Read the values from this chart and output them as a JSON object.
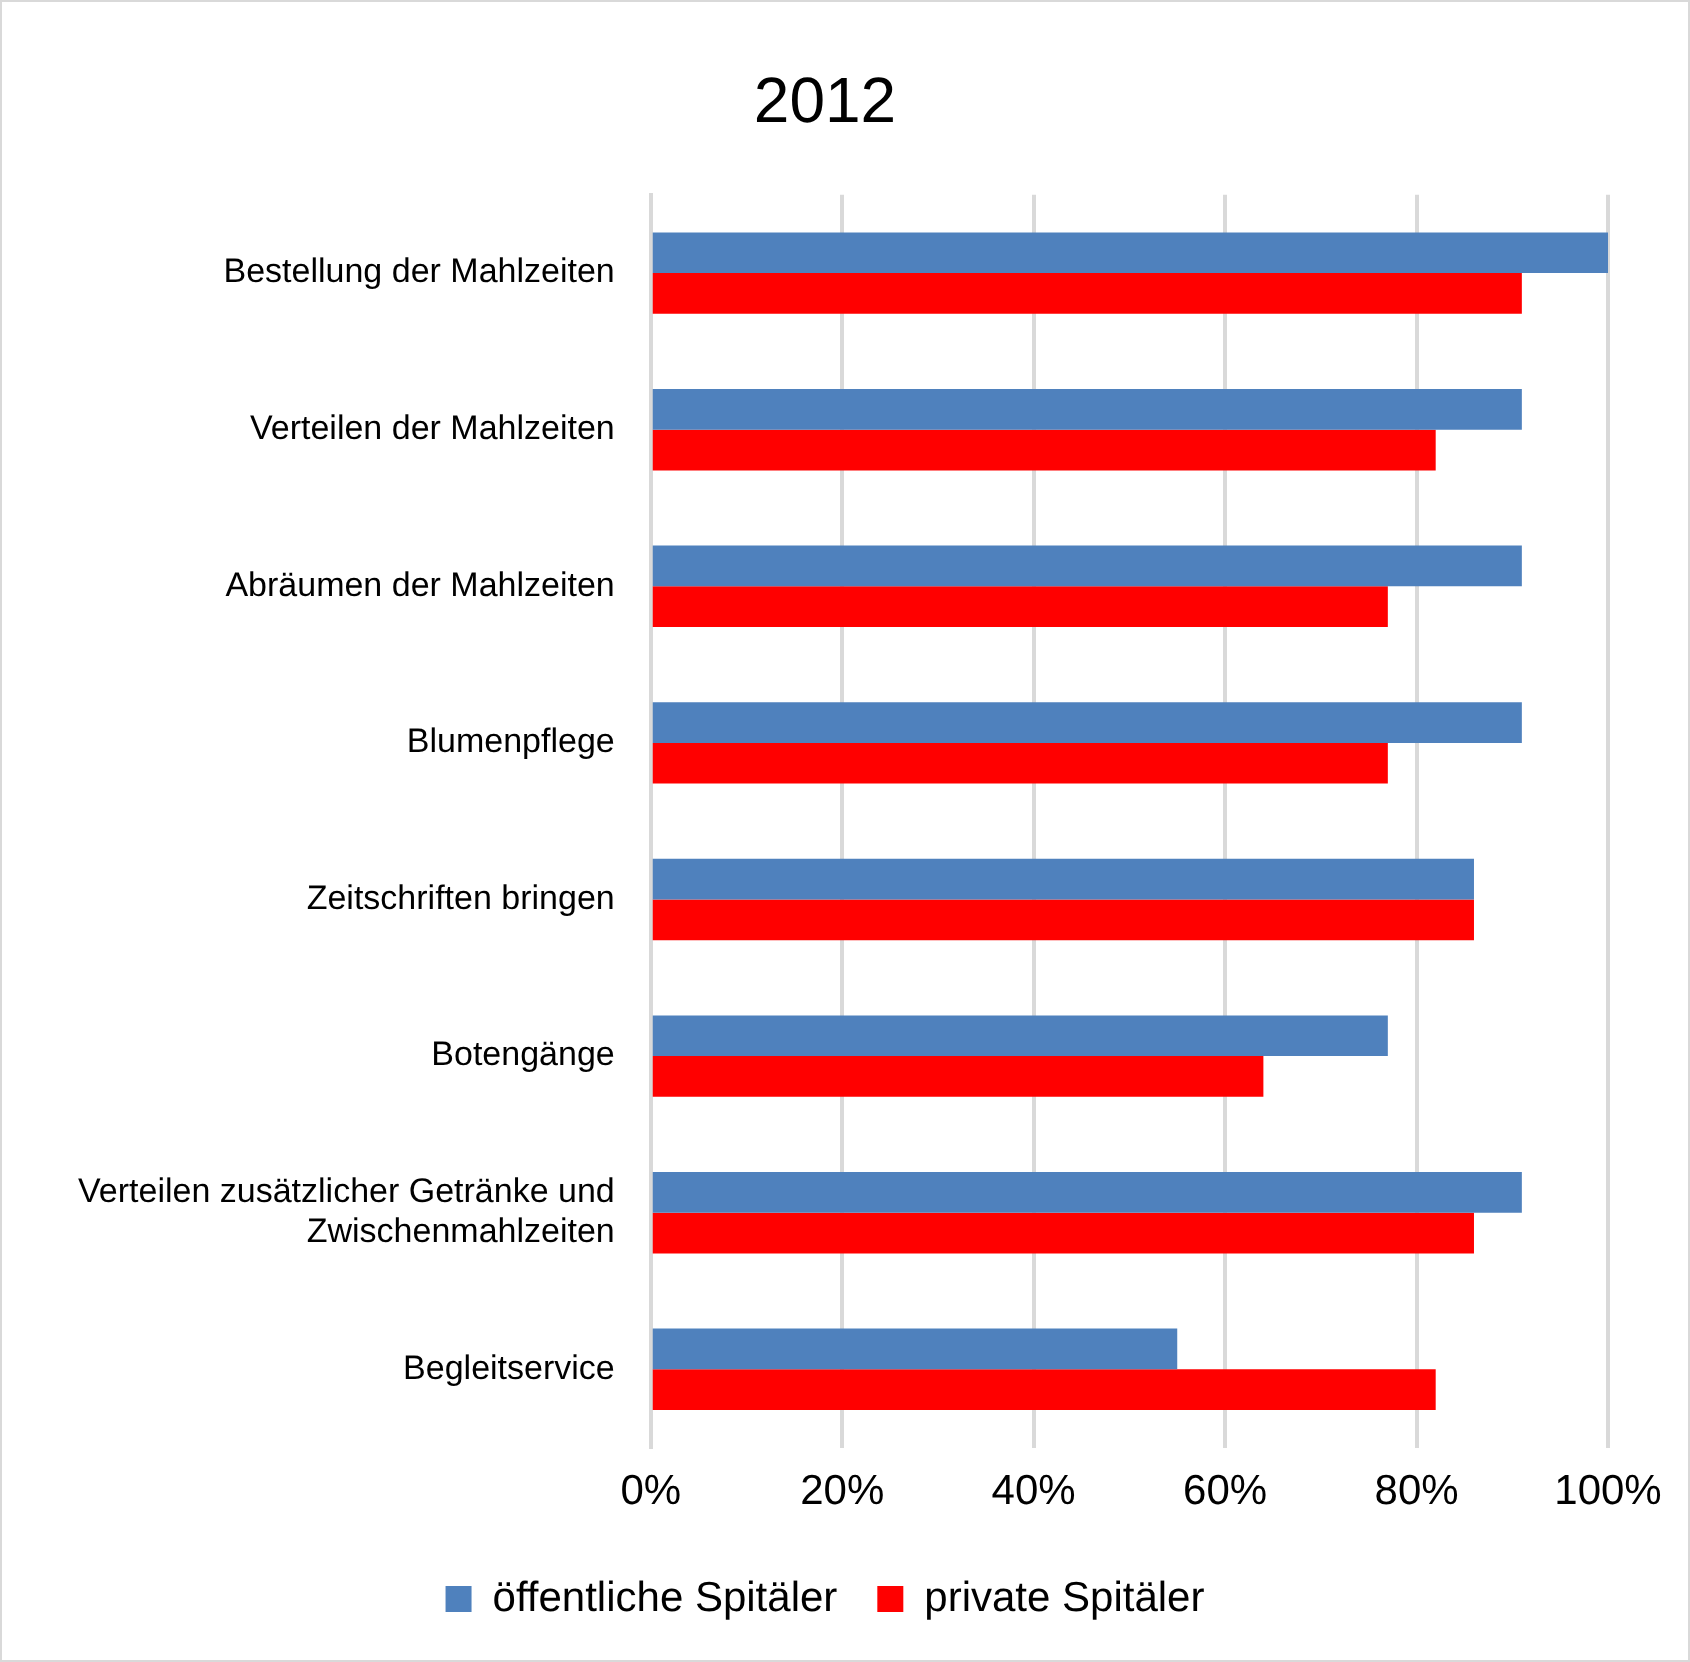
{
  "chart_data": {
    "type": "bar",
    "orientation": "horizontal",
    "title": "2012",
    "categories": [
      "Bestellung der Mahlzeiten",
      "Verteilen der Mahlzeiten",
      "Abräumen der Mahlzeiten",
      "Blumenpflege",
      "Zeitschriften bringen",
      "Botengänge",
      "Verteilen zusätzlicher Getränke und Zwischenmahlzeiten",
      "Begleitservice"
    ],
    "series": [
      {
        "name": "öffentliche Spitäler",
        "color": "#4f81bd",
        "values": [
          100,
          91,
          91,
          91,
          86,
          77,
          91,
          55
        ]
      },
      {
        "name": "private Spitäler",
        "color": "#ff0000",
        "values": [
          91,
          82,
          77,
          77,
          86,
          64,
          86,
          82
        ]
      }
    ],
    "xlim": [
      0,
      100
    ],
    "xticks": [
      {
        "value": 0,
        "label": "0%"
      },
      {
        "value": 20,
        "label": "20%"
      },
      {
        "value": 40,
        "label": "40%"
      },
      {
        "value": 60,
        "label": "60%"
      },
      {
        "value": 80,
        "label": "80%"
      },
      {
        "value": 100,
        "label": "100%"
      }
    ],
    "grid": "x",
    "legend": "bottom"
  }
}
